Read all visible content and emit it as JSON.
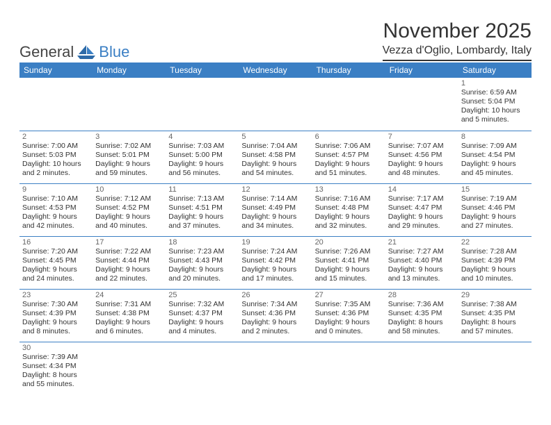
{
  "brand": {
    "part1": "General",
    "part2": "Blue"
  },
  "title": "November 2025",
  "location": "Vezza d'Oglio, Lombardy, Italy",
  "colors": {
    "header_bg": "#3b7fc4",
    "header_text": "#ffffff",
    "rule": "#333333",
    "text": "#333333",
    "daynum": "#666666",
    "background": "#ffffff"
  },
  "weekdays": [
    "Sunday",
    "Monday",
    "Tuesday",
    "Wednesday",
    "Thursday",
    "Friday",
    "Saturday"
  ],
  "labels": {
    "sunrise": "Sunrise:",
    "sunset": "Sunset:",
    "daylight": "Daylight:"
  },
  "first_weekday_index": 6,
  "days": [
    {
      "n": 1,
      "sunrise": "6:59 AM",
      "sunset": "5:04 PM",
      "daylight": "10 hours and 5 minutes."
    },
    {
      "n": 2,
      "sunrise": "7:00 AM",
      "sunset": "5:03 PM",
      "daylight": "10 hours and 2 minutes."
    },
    {
      "n": 3,
      "sunrise": "7:02 AM",
      "sunset": "5:01 PM",
      "daylight": "9 hours and 59 minutes."
    },
    {
      "n": 4,
      "sunrise": "7:03 AM",
      "sunset": "5:00 PM",
      "daylight": "9 hours and 56 minutes."
    },
    {
      "n": 5,
      "sunrise": "7:04 AM",
      "sunset": "4:58 PM",
      "daylight": "9 hours and 54 minutes."
    },
    {
      "n": 6,
      "sunrise": "7:06 AM",
      "sunset": "4:57 PM",
      "daylight": "9 hours and 51 minutes."
    },
    {
      "n": 7,
      "sunrise": "7:07 AM",
      "sunset": "4:56 PM",
      "daylight": "9 hours and 48 minutes."
    },
    {
      "n": 8,
      "sunrise": "7:09 AM",
      "sunset": "4:54 PM",
      "daylight": "9 hours and 45 minutes."
    },
    {
      "n": 9,
      "sunrise": "7:10 AM",
      "sunset": "4:53 PM",
      "daylight": "9 hours and 42 minutes."
    },
    {
      "n": 10,
      "sunrise": "7:12 AM",
      "sunset": "4:52 PM",
      "daylight": "9 hours and 40 minutes."
    },
    {
      "n": 11,
      "sunrise": "7:13 AM",
      "sunset": "4:51 PM",
      "daylight": "9 hours and 37 minutes."
    },
    {
      "n": 12,
      "sunrise": "7:14 AM",
      "sunset": "4:49 PM",
      "daylight": "9 hours and 34 minutes."
    },
    {
      "n": 13,
      "sunrise": "7:16 AM",
      "sunset": "4:48 PM",
      "daylight": "9 hours and 32 minutes."
    },
    {
      "n": 14,
      "sunrise": "7:17 AM",
      "sunset": "4:47 PM",
      "daylight": "9 hours and 29 minutes."
    },
    {
      "n": 15,
      "sunrise": "7:19 AM",
      "sunset": "4:46 PM",
      "daylight": "9 hours and 27 minutes."
    },
    {
      "n": 16,
      "sunrise": "7:20 AM",
      "sunset": "4:45 PM",
      "daylight": "9 hours and 24 minutes."
    },
    {
      "n": 17,
      "sunrise": "7:22 AM",
      "sunset": "4:44 PM",
      "daylight": "9 hours and 22 minutes."
    },
    {
      "n": 18,
      "sunrise": "7:23 AM",
      "sunset": "4:43 PM",
      "daylight": "9 hours and 20 minutes."
    },
    {
      "n": 19,
      "sunrise": "7:24 AM",
      "sunset": "4:42 PM",
      "daylight": "9 hours and 17 minutes."
    },
    {
      "n": 20,
      "sunrise": "7:26 AM",
      "sunset": "4:41 PM",
      "daylight": "9 hours and 15 minutes."
    },
    {
      "n": 21,
      "sunrise": "7:27 AM",
      "sunset": "4:40 PM",
      "daylight": "9 hours and 13 minutes."
    },
    {
      "n": 22,
      "sunrise": "7:28 AM",
      "sunset": "4:39 PM",
      "daylight": "9 hours and 10 minutes."
    },
    {
      "n": 23,
      "sunrise": "7:30 AM",
      "sunset": "4:39 PM",
      "daylight": "9 hours and 8 minutes."
    },
    {
      "n": 24,
      "sunrise": "7:31 AM",
      "sunset": "4:38 PM",
      "daylight": "9 hours and 6 minutes."
    },
    {
      "n": 25,
      "sunrise": "7:32 AM",
      "sunset": "4:37 PM",
      "daylight": "9 hours and 4 minutes."
    },
    {
      "n": 26,
      "sunrise": "7:34 AM",
      "sunset": "4:36 PM",
      "daylight": "9 hours and 2 minutes."
    },
    {
      "n": 27,
      "sunrise": "7:35 AM",
      "sunset": "4:36 PM",
      "daylight": "9 hours and 0 minutes."
    },
    {
      "n": 28,
      "sunrise": "7:36 AM",
      "sunset": "4:35 PM",
      "daylight": "8 hours and 58 minutes."
    },
    {
      "n": 29,
      "sunrise": "7:38 AM",
      "sunset": "4:35 PM",
      "daylight": "8 hours and 57 minutes."
    },
    {
      "n": 30,
      "sunrise": "7:39 AM",
      "sunset": "4:34 PM",
      "daylight": "8 hours and 55 minutes."
    }
  ]
}
